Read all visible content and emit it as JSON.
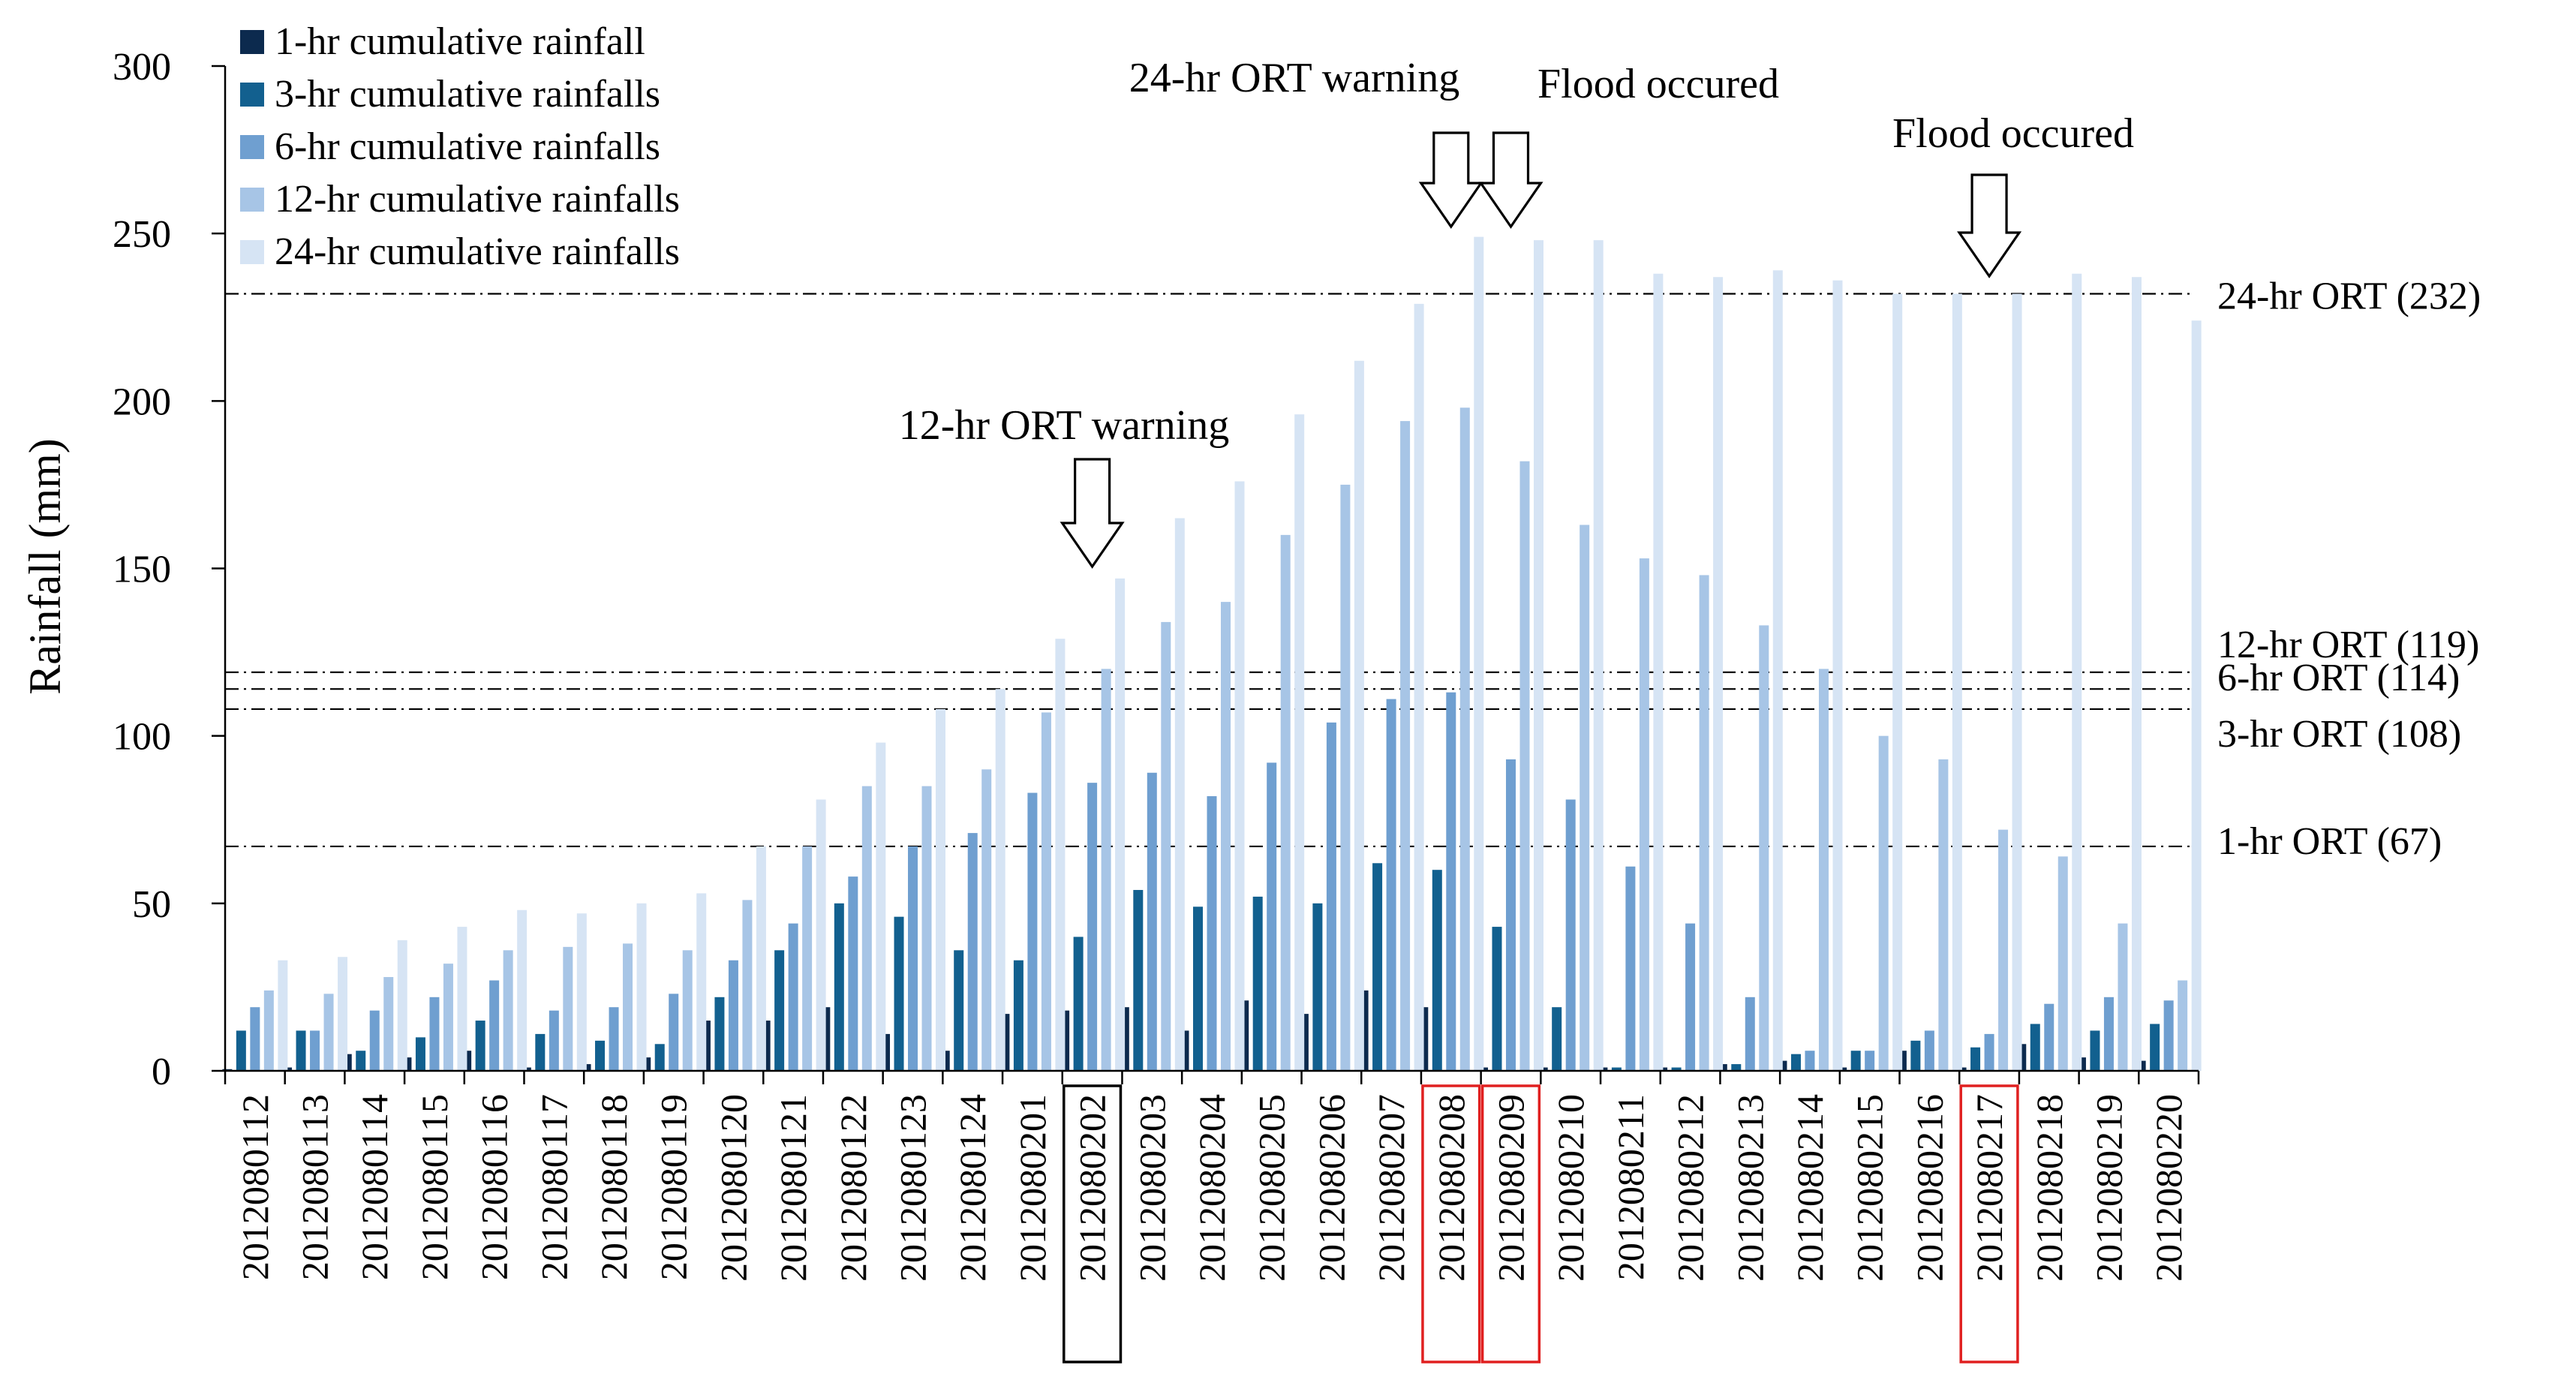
{
  "chart_data": {
    "type": "bar",
    "ylabel": "Rainfall (mm)",
    "xlabel": "",
    "ylim": [
      0,
      300
    ],
    "yticks": [
      "0",
      "50",
      "100",
      "150",
      "200",
      "250",
      "300"
    ],
    "grid": false,
    "legend_position": "top-left",
    "categories": [
      "2012080112",
      "2012080113",
      "2012080114",
      "2012080115",
      "2012080116",
      "2012080117",
      "2012080118",
      "2012080119",
      "2012080120",
      "2012080121",
      "2012080122",
      "2012080123",
      "2012080124",
      "2012080201",
      "2012080202",
      "2012080203",
      "2012080204",
      "2012080205",
      "2012080206",
      "2012080207",
      "2012080208",
      "2012080209",
      "2012080210",
      "2012080211",
      "2012080212",
      "2012080213",
      "2012080214",
      "2012080215",
      "2012080216",
      "2012080217",
      "2012080218",
      "2012080219",
      "2012080220"
    ],
    "series": [
      {
        "name": "1-hr cumulative rainfall",
        "color": "#0c2a4e",
        "values": [
          0.5,
          1,
          5,
          4,
          6,
          1,
          2,
          4,
          15,
          15,
          19,
          11,
          6,
          17,
          18,
          19,
          12,
          21,
          17,
          24,
          19,
          1,
          1,
          1,
          1,
          2,
          3,
          1,
          6,
          1,
          8,
          4,
          3
        ]
      },
      {
        "name": "3-hr cumulative rainfalls",
        "color": "#12608f",
        "values": [
          12,
          12,
          6,
          10,
          15,
          11,
          9,
          8,
          22,
          36,
          50,
          46,
          36,
          33,
          40,
          54,
          49,
          52,
          50,
          62,
          60,
          43,
          19,
          1,
          1,
          2,
          5,
          6,
          9,
          7,
          14,
          12,
          14
        ]
      },
      {
        "name": "6-hr cumulative rainfalls",
        "color": "#6f9fd0",
        "values": [
          19,
          12,
          18,
          22,
          27,
          18,
          19,
          23,
          33,
          44,
          58,
          67,
          71,
          83,
          86,
          89,
          82,
          92,
          104,
          111,
          113,
          93,
          81,
          61,
          44,
          22,
          6,
          6,
          12,
          11,
          20,
          22,
          21
        ]
      },
      {
        "name": "12-hr cumulative rainfalls",
        "color": "#a7c5e6",
        "values": [
          24,
          23,
          28,
          32,
          36,
          37,
          38,
          36,
          51,
          67,
          85,
          85,
          90,
          107,
          120,
          134,
          140,
          160,
          175,
          194,
          198,
          182,
          163,
          153,
          148,
          133,
          120,
          100,
          93,
          72,
          64,
          44,
          27
        ]
      },
      {
        "name": "24-hr cumulative rainfalls",
        "color": "#d6e4f4",
        "values": [
          33,
          34,
          39,
          43,
          48,
          47,
          50,
          53,
          67,
          81,
          98,
          108,
          114,
          129,
          147,
          165,
          176,
          196,
          212,
          229,
          249,
          248,
          248,
          238,
          237,
          239,
          236,
          232,
          232,
          232,
          238,
          237,
          224
        ]
      }
    ],
    "reference_lines": [
      {
        "label": "24-hr ORT (232)",
        "value": 232
      },
      {
        "label": "12-hr ORT (119)",
        "value": 119
      },
      {
        "label": "6-hr ORT (114)",
        "value": 114
      },
      {
        "label": "3-hr ORT (108)",
        "value": 108
      },
      {
        "label": "1-hr ORT (67)",
        "value": 67
      }
    ],
    "annotations": [
      {
        "text": "12-hr ORT warning",
        "category": "2012080202",
        "arrows": [
          "2012080202"
        ]
      },
      {
        "text": "24-hr ORT warning",
        "category": "2012080208",
        "arrows": [
          "2012080208"
        ]
      },
      {
        "text": "Flood occured",
        "category": "2012080209",
        "arrows": [
          "2012080209"
        ]
      },
      {
        "text": "Flood occured",
        "category": "2012080217",
        "arrows": [
          "2012080217"
        ]
      }
    ],
    "highlighted_categories": [
      {
        "category": "2012080202",
        "color": "#000000"
      },
      {
        "category": "2012080208",
        "color": "#e02020"
      },
      {
        "category": "2012080209",
        "color": "#e02020"
      },
      {
        "category": "2012080217",
        "color": "#e02020"
      }
    ]
  }
}
